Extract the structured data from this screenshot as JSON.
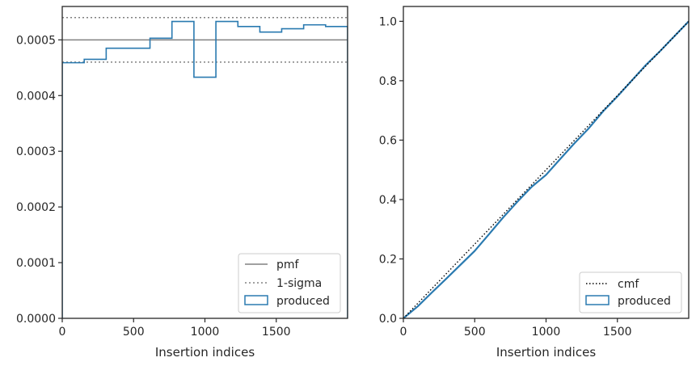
{
  "colors": {
    "hist": "#2a7ab0",
    "pmf": "#808080",
    "sigma": "#808080",
    "cmf": "#000000",
    "axis": "#262626",
    "legend_border": "#cccccc"
  },
  "chart_data": [
    {
      "type": "histogram",
      "xlabel": "Insertion indices",
      "ylabel": "",
      "xlim": [
        0,
        2000
      ],
      "ylim": [
        0,
        0.00056
      ],
      "xticks": [
        0,
        500,
        1000,
        1500
      ],
      "xtick_labels": [
        "0",
        "500",
        "1000",
        "1500"
      ],
      "yticks": [
        0,
        0.0001,
        0.0002,
        0.0003,
        0.0004,
        0.0005
      ],
      "ytick_labels": [
        "0.0000",
        "0.0001",
        "0.0002",
        "0.0003",
        "0.0004",
        "0.0005"
      ],
      "grid": false,
      "legend_position": "lower right",
      "legend": [
        "pmf",
        "1-sigma",
        "produced"
      ],
      "pmf": 0.0005,
      "sigma_band": [
        0.00046,
        0.00054
      ],
      "bin_edges": [
        0,
        154,
        308,
        462,
        615,
        769,
        923,
        1077,
        1231,
        1385,
        1538,
        1692,
        1846,
        2000
      ],
      "values": [
        0.000459,
        0.000465,
        0.000485,
        0.000485,
        0.000503,
        0.000533,
        0.000433,
        0.000533,
        0.000524,
        0.000514,
        0.00052,
        0.000527,
        0.000524
      ]
    },
    {
      "type": "line",
      "xlabel": "Insertion indices",
      "ylabel": "",
      "xlim": [
        0,
        2000
      ],
      "ylim": [
        0,
        1.05
      ],
      "xticks": [
        0,
        500,
        1000,
        1500
      ],
      "xtick_labels": [
        "0",
        "500",
        "1000",
        "1500"
      ],
      "yticks": [
        0,
        0.2,
        0.4,
        0.6,
        0.8,
        1.0
      ],
      "ytick_labels": [
        "0.0",
        "0.2",
        "0.4",
        "0.6",
        "0.8",
        "1.0"
      ],
      "grid": false,
      "legend_position": "lower right",
      "legend": [
        "cmf",
        "produced"
      ],
      "cmf": {
        "x": [
          0,
          2000
        ],
        "y": [
          0,
          1.0
        ]
      },
      "produced": {
        "x": [
          0,
          100,
          200,
          300,
          400,
          500,
          600,
          700,
          800,
          900,
          1000,
          1100,
          1200,
          1300,
          1400,
          1500,
          1600,
          1700,
          1800,
          1900,
          2000
        ],
        "y": [
          0,
          0.04,
          0.087,
          0.133,
          0.18,
          0.227,
          0.283,
          0.34,
          0.393,
          0.443,
          0.483,
          0.537,
          0.59,
          0.64,
          0.697,
          0.747,
          0.8,
          0.853,
          0.9,
          0.95,
          1.0
        ]
      }
    }
  ]
}
